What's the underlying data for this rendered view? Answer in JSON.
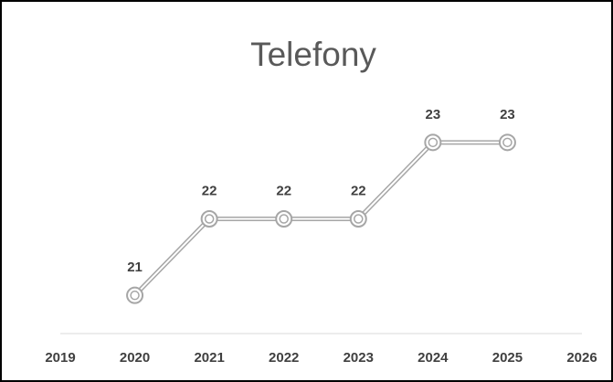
{
  "chart_data": {
    "type": "line",
    "title": "Telefony",
    "x": [
      2020,
      2021,
      2022,
      2023,
      2024,
      2025
    ],
    "series": [
      {
        "name": "Telefony",
        "color": "#a6a6a6",
        "values": [
          21,
          22,
          22,
          22,
          23,
          23
        ]
      }
    ],
    "xlim": [
      2019,
      2026
    ],
    "xticks": [
      2019,
      2020,
      2021,
      2022,
      2023,
      2024,
      2025,
      2026
    ],
    "ylim": [
      20.5,
      23.5
    ]
  }
}
